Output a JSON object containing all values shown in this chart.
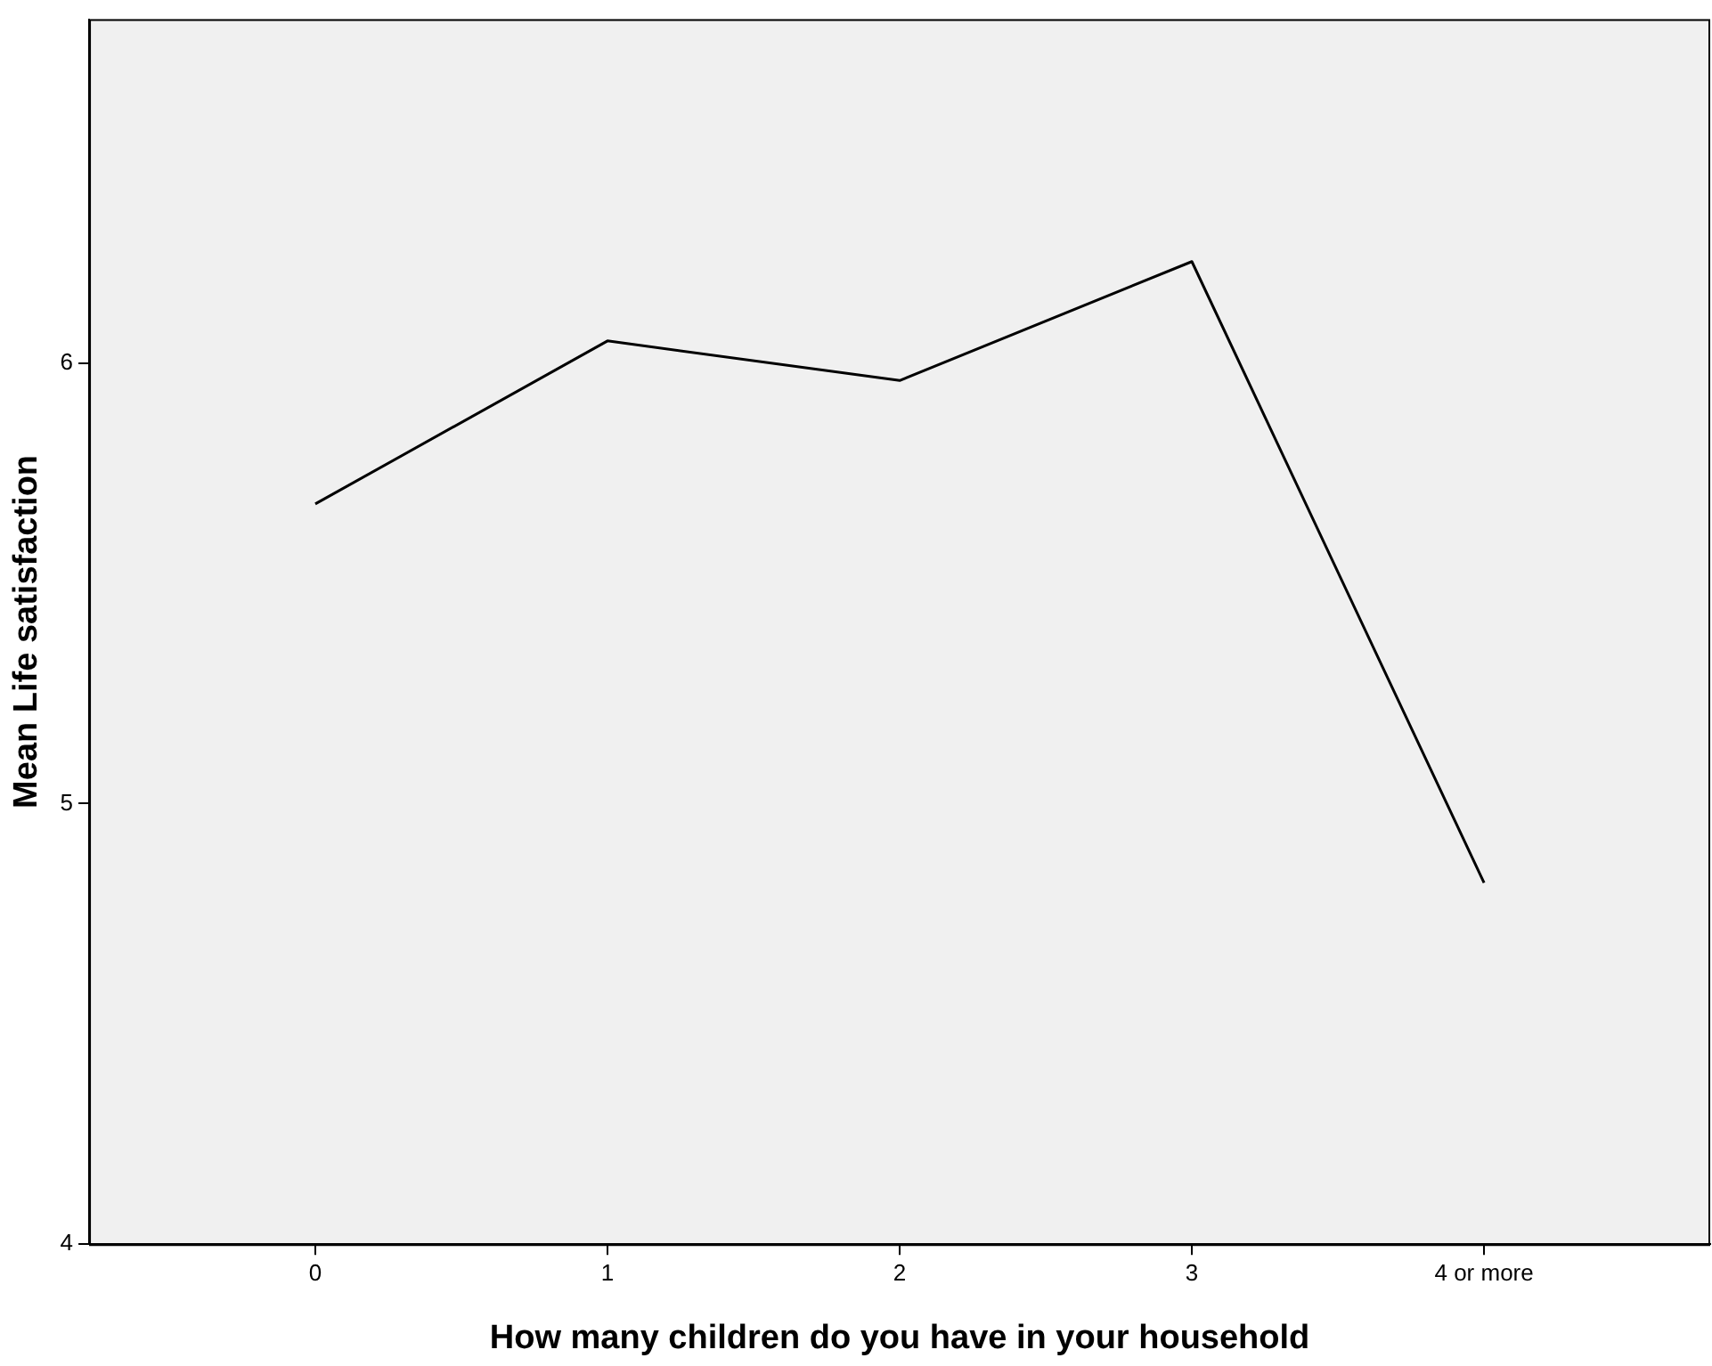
{
  "chart_data": {
    "type": "line",
    "xlabel": "How many children do you have in your household",
    "ylabel": "Mean Life satisfaction",
    "categories": [
      "0",
      "1",
      "2",
      "3",
      "4 or more"
    ],
    "series": [
      {
        "color": "#000000",
        "values": [
          5.68,
          6.05,
          5.96,
          6.23,
          4.82
        ]
      }
    ],
    "ylim": [
      4,
      6.78
    ],
    "yticks": [
      4,
      5,
      6
    ],
    "grid": false,
    "legend": false,
    "marker": "none",
    "line_style": "solid"
  }
}
